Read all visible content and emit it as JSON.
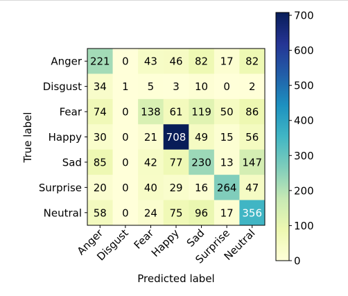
{
  "chart_data": {
    "type": "heatmap",
    "title": "",
    "xlabel": "Predicted label",
    "ylabel": "True label",
    "categories": [
      "Anger",
      "Disgust",
      "Fear",
      "Happy",
      "Sad",
      "Surprise",
      "Neutral"
    ],
    "values": [
      [
        221,
        0,
        43,
        46,
        82,
        17,
        82
      ],
      [
        34,
        1,
        5,
        3,
        10,
        0,
        2
      ],
      [
        74,
        0,
        138,
        61,
        119,
        50,
        86
      ],
      [
        30,
        0,
        21,
        708,
        49,
        15,
        56
      ],
      [
        85,
        0,
        42,
        77,
        230,
        13,
        147
      ],
      [
        20,
        0,
        40,
        29,
        16,
        264,
        47
      ],
      [
        58,
        0,
        24,
        75,
        96,
        17,
        356
      ]
    ],
    "colormap": "YlGnBu",
    "colorbar": {
      "range": [
        0,
        708
      ],
      "ticks": [
        0,
        100,
        200,
        300,
        400,
        500,
        600,
        700
      ]
    }
  }
}
